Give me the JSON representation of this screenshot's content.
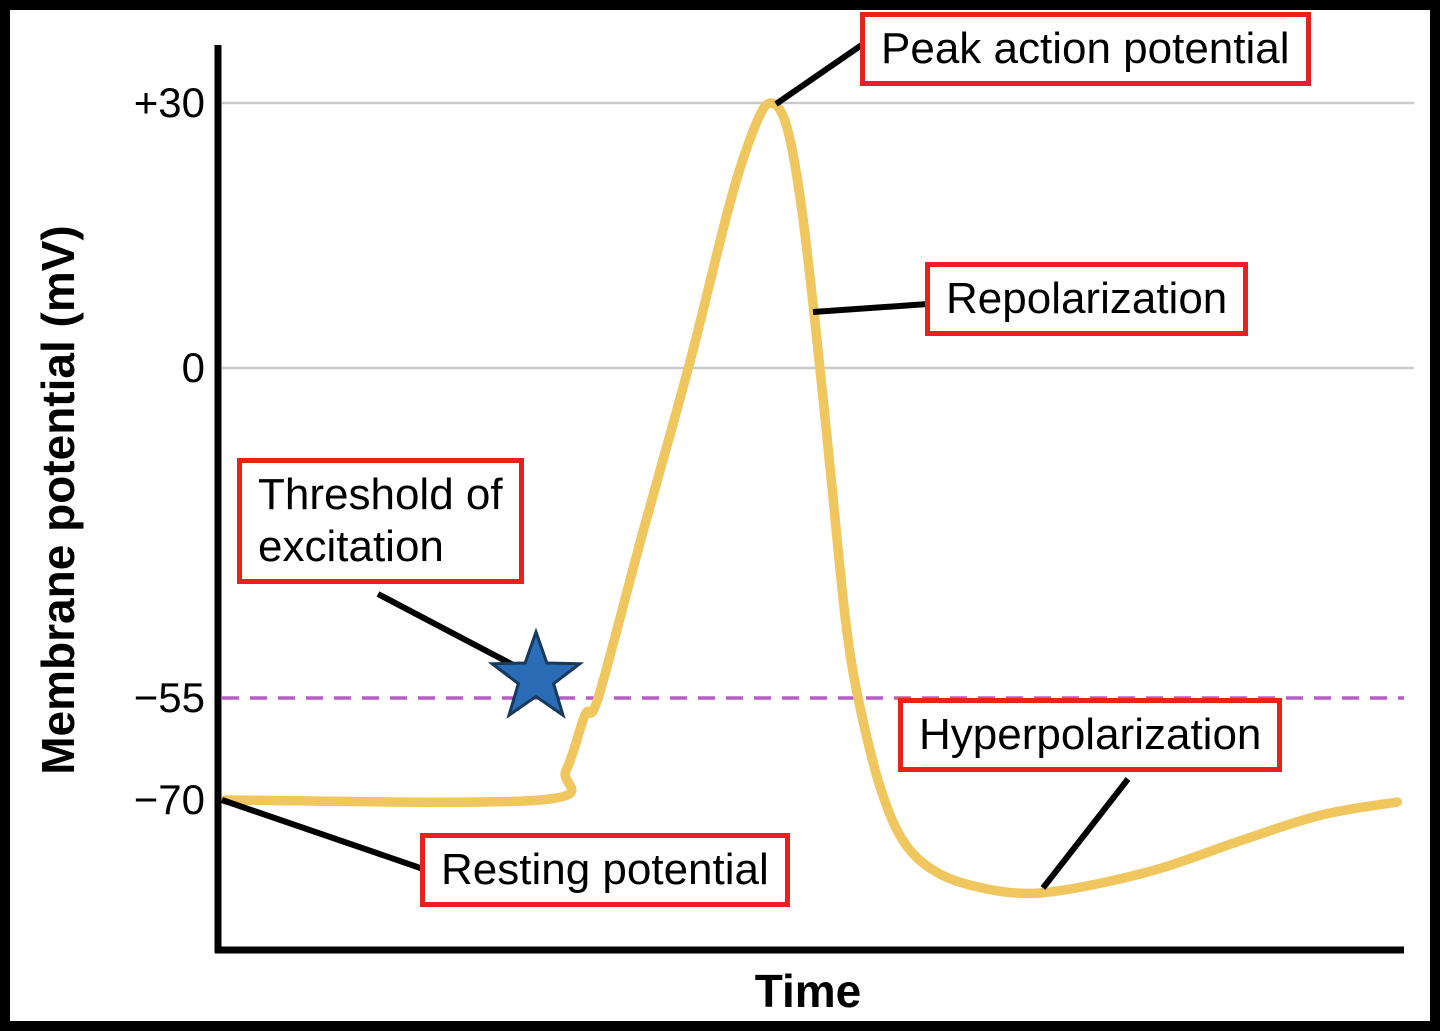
{
  "figure": {
    "ylabel": "Membrane potential (mV)",
    "xlabel": "Time",
    "yticks": [
      {
        "label": "+30",
        "mv": 30
      },
      {
        "label": "0",
        "mv": 0
      },
      {
        "label": "−55",
        "mv": -55
      },
      {
        "label": "−70",
        "mv": -70
      }
    ],
    "annotations": {
      "peak": "Peak action potential",
      "repolarization": "Repolarization",
      "threshold": [
        "Threshold of",
        "excitation"
      ],
      "hyperpolarization": "Hyperpolarization",
      "resting": "Resting potential"
    },
    "colors": {
      "curve": "#f0c75e",
      "annotation_border": "#e8211d",
      "threshold_line": "#b55fc6",
      "star_fill": "#2a6db6",
      "star_stroke": "#16395c",
      "gridline": "#c9c9c9",
      "axis": "#000000"
    }
  },
  "chart_data": {
    "type": "line",
    "title": "",
    "xlabel": "Time",
    "ylabel": "Membrane potential (mV)",
    "x_range": [
      0,
      100
    ],
    "yticks": [
      30,
      0,
      -55,
      -70
    ],
    "ylim": [
      -90,
      40
    ],
    "reference_lines": [
      {
        "value": -55,
        "style": "dashed",
        "label": "Threshold of excitation"
      },
      {
        "value": -70,
        "style": "none",
        "label": "Resting potential"
      }
    ],
    "key_values": {
      "resting_potential_mv": -70,
      "threshold_mv": -55,
      "peak_action_potential_mv": 30,
      "hyperpolarization_min_mv": -84
    },
    "series": [
      {
        "name": "Membrane potential",
        "color": "#f0c75e",
        "points": [
          [
            0.6,
            -70
          ],
          [
            27.2,
            -70
          ],
          [
            29.4,
            -65.6
          ],
          [
            31.0,
            -57.5
          ],
          [
            32.1,
            -55
          ],
          [
            35.7,
            -28.7
          ],
          [
            39.9,
            0.9
          ],
          [
            43.3,
            19.0
          ],
          [
            45.4,
            27.5
          ],
          [
            46.7,
            30.0
          ],
          [
            48.0,
            27.5
          ],
          [
            49.2,
            19.0
          ],
          [
            50.5,
            4.3
          ],
          [
            51.8,
            -18.7
          ],
          [
            53.0,
            -42.0
          ],
          [
            54.1,
            -55.3
          ],
          [
            56.0,
            -68.5
          ],
          [
            58.1,
            -76.6
          ],
          [
            61.1,
            -81.0
          ],
          [
            65.3,
            -83.2
          ],
          [
            69.1,
            -83.7
          ],
          [
            73.8,
            -82.5
          ],
          [
            79.7,
            -80.0
          ],
          [
            86.5,
            -75.9
          ],
          [
            93.2,
            -72.2
          ],
          [
            99.6,
            -70.3
          ]
        ]
      }
    ]
  }
}
